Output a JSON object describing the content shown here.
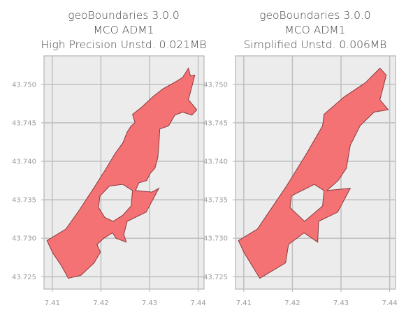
{
  "chart_data": [
    {
      "type": "map",
      "title": [
        "geoBoundaries 3.0.0",
        "MCO ADM1",
        "High Precision Unstd. 0.021MB"
      ],
      "x_ticks": [
        7.41,
        7.42,
        7.43,
        7.44
      ],
      "y_ticks": [
        43.725,
        43.73,
        43.735,
        43.74,
        43.745,
        43.75
      ],
      "x_tick_labels": [
        "7.41",
        "7.42",
        "7.43",
        "7.44"
      ],
      "y_tick_labels": [
        "43.725",
        "43.730",
        "43.735",
        "43.740",
        "43.745",
        "43.750"
      ],
      "xlim": [
        7.4083,
        7.4412
      ],
      "ylim": [
        43.7234,
        43.7537
      ],
      "grid": true,
      "fill_color": "#f47174",
      "edge_color": "#8a3a3c",
      "background_color": "#ececec",
      "polygon": [
        [
          7.4089,
          43.7297
        ],
        [
          7.4128,
          43.7312
        ],
        [
          7.4157,
          43.7338
        ],
        [
          7.4188,
          43.7368
        ],
        [
          7.4212,
          43.7392
        ],
        [
          7.4229,
          43.741
        ],
        [
          7.4245,
          43.7424
        ],
        [
          7.4254,
          43.7438
        ],
        [
          7.4262,
          43.7446
        ],
        [
          7.427,
          43.745
        ],
        [
          7.4265,
          43.7461
        ],
        [
          7.4285,
          43.7471
        ],
        [
          7.4307,
          43.7484
        ],
        [
          7.4327,
          43.7494
        ],
        [
          7.435,
          43.7502
        ],
        [
          7.4368,
          43.7509
        ],
        [
          7.438,
          43.7521
        ],
        [
          7.4384,
          43.7511
        ],
        [
          7.4393,
          43.7512
        ],
        [
          7.438,
          43.748
        ],
        [
          7.4397,
          43.7467
        ],
        [
          7.4387,
          43.746
        ],
        [
          7.4368,
          43.7464
        ],
        [
          7.4352,
          43.746
        ],
        [
          7.4339,
          43.7446
        ],
        [
          7.4321,
          43.7442
        ],
        [
          7.4319,
          43.7421
        ],
        [
          7.4317,
          43.7405
        ],
        [
          7.4311,
          43.7391
        ],
        [
          7.4301,
          43.7384
        ],
        [
          7.4294,
          43.7375
        ],
        [
          7.4278,
          43.7372
        ],
        [
          7.4271,
          43.7362
        ],
        [
          7.4305,
          43.736
        ],
        [
          7.4319,
          43.7365
        ],
        [
          7.4293,
          43.7334
        ],
        [
          7.4254,
          43.7322
        ],
        [
          7.4247,
          43.7305
        ],
        [
          7.4252,
          43.7295
        ],
        [
          7.4231,
          43.73
        ],
        [
          7.4224,
          43.7307
        ],
        [
          7.4206,
          43.73
        ],
        [
          7.4192,
          43.7292
        ],
        [
          7.4199,
          43.7282
        ],
        [
          7.4186,
          43.7268
        ],
        [
          7.4159,
          43.7252
        ],
        [
          7.4133,
          43.7248
        ],
        [
          7.4118,
          43.7265
        ],
        [
          7.4101,
          43.7281
        ],
        [
          7.4089,
          43.7297
        ]
      ],
      "holes": [
        [
          [
            7.4198,
            43.7355
          ],
          [
            7.4218,
            43.7368
          ],
          [
            7.4245,
            43.737
          ],
          [
            7.4265,
            43.7362
          ],
          [
            7.4262,
            43.7342
          ],
          [
            7.4245,
            43.733
          ],
          [
            7.4225,
            43.7322
          ],
          [
            7.4208,
            43.7327
          ],
          [
            7.4195,
            43.734
          ],
          [
            7.4198,
            43.7355
          ]
        ]
      ]
    },
    {
      "type": "map",
      "title": [
        "geoBoundaries 3.0.0",
        "MCO ADM1",
        "Simplified Unstd. 0.006MB"
      ],
      "x_ticks": [
        7.41,
        7.42,
        7.43,
        7.44
      ],
      "y_ticks": [
        43.725,
        43.73,
        43.735,
        43.74,
        43.745,
        43.75
      ],
      "x_tick_labels": [
        "7.41",
        "7.42",
        "7.43",
        "7.44"
      ],
      "y_tick_labels": [
        "43.725",
        "43.730",
        "43.735",
        "43.740",
        "43.745",
        "43.750"
      ],
      "xlim": [
        7.4083,
        7.4412
      ],
      "ylim": [
        43.7234,
        43.7537
      ],
      "grid": true,
      "fill_color": "#f47174",
      "edge_color": "#8a3a3c",
      "background_color": "#ececec",
      "polygon": [
        [
          7.4089,
          43.7297
        ],
        [
          7.4128,
          43.7312
        ],
        [
          7.4188,
          43.7368
        ],
        [
          7.4229,
          43.741
        ],
        [
          7.4262,
          43.7446
        ],
        [
          7.4265,
          43.7461
        ],
        [
          7.4307,
          43.7484
        ],
        [
          7.435,
          43.7502
        ],
        [
          7.438,
          43.7521
        ],
        [
          7.4393,
          43.7512
        ],
        [
          7.438,
          43.748
        ],
        [
          7.4397,
          43.7467
        ],
        [
          7.4368,
          43.7464
        ],
        [
          7.4339,
          43.7446
        ],
        [
          7.4319,
          43.7421
        ],
        [
          7.4311,
          43.7391
        ],
        [
          7.4294,
          43.7375
        ],
        [
          7.4271,
          43.7362
        ],
        [
          7.4319,
          43.7365
        ],
        [
          7.4293,
          43.7334
        ],
        [
          7.4254,
          43.7322
        ],
        [
          7.4252,
          43.7295
        ],
        [
          7.4224,
          43.7307
        ],
        [
          7.4192,
          43.7292
        ],
        [
          7.4186,
          43.7268
        ],
        [
          7.4133,
          43.7248
        ],
        [
          7.4101,
          43.7281
        ],
        [
          7.4089,
          43.7297
        ]
      ],
      "holes": [
        [
          [
            7.4198,
            43.7355
          ],
          [
            7.4245,
            43.737
          ],
          [
            7.4265,
            43.7362
          ],
          [
            7.4262,
            43.7342
          ],
          [
            7.4225,
            43.7322
          ],
          [
            7.4195,
            43.734
          ],
          [
            7.4198,
            43.7355
          ]
        ]
      ]
    }
  ]
}
